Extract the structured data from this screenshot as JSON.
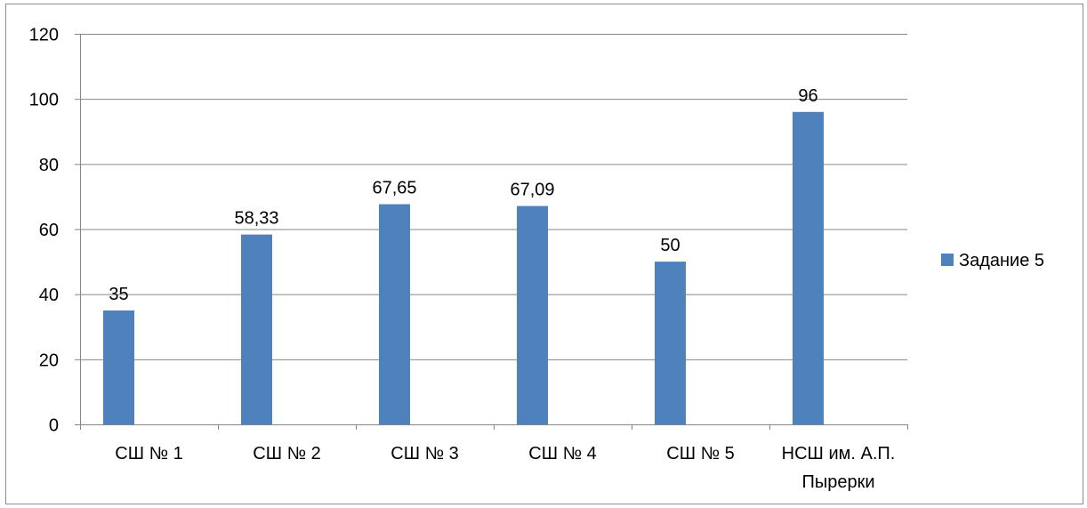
{
  "chart_data": {
    "type": "bar",
    "categories": [
      "СШ № 1",
      "СШ № 2",
      "СШ № 3",
      "СШ № 4",
      "СШ № 5",
      "НСШ им. А.П. Пырерки"
    ],
    "category_lines": [
      [
        "СШ № 1"
      ],
      [
        "СШ № 2"
      ],
      [
        "СШ № 3"
      ],
      [
        "СШ № 4"
      ],
      [
        "СШ № 5"
      ],
      [
        "НСШ им. А.П.",
        "Пырерки"
      ]
    ],
    "series": [
      {
        "name": "Задание 5",
        "values": [
          35,
          58.33,
          67.65,
          67.09,
          50,
          96
        ],
        "labels": [
          "35",
          "58,33",
          "67,65",
          "67,09",
          "50",
          "96"
        ]
      }
    ],
    "title": "",
    "xlabel": "",
    "ylabel": "",
    "ylim": [
      0,
      120
    ],
    "yticks": [
      0,
      20,
      40,
      60,
      80,
      100,
      120
    ],
    "grid": true,
    "legend_position": "right",
    "colors": {
      "bar": "#4f81bd",
      "grid": "#868686",
      "axis": "#868686"
    }
  }
}
